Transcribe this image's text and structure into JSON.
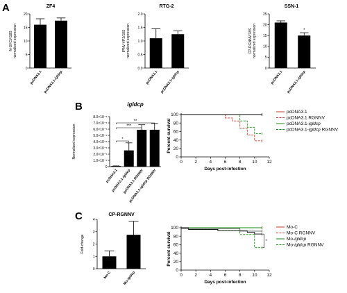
{
  "panels": {
    "A": "A",
    "B": "B",
    "C": "C"
  },
  "chart_data": [
    {
      "id": "zf4",
      "type": "bar",
      "title": "ZF4",
      "ylabel": "N-SVCV/18S normalized expression",
      "ylim": [
        0,
        20
      ],
      "yticks": [
        "0",
        "5",
        "10",
        "15",
        "20"
      ],
      "categories": [
        "pcDNA3.1",
        "pcDNA3.1-igldcp"
      ],
      "values": [
        16,
        17.5
      ],
      "errors": [
        2.2,
        1.0
      ],
      "significance": []
    },
    {
      "id": "rtg2",
      "type": "bar",
      "title": "RTG-2",
      "ylabel": "IPNV-VP2/18S normalized expression",
      "ylim": [
        0,
        2.0
      ],
      "yticks": [
        "0.0",
        "0.5",
        "1.0",
        "1.5",
        "2.0"
      ],
      "categories": [
        "pcDNA3.1",
        "pcDNA3.1-igldcp"
      ],
      "values": [
        1.1,
        1.25
      ],
      "errors": [
        0.35,
        0.12
      ],
      "significance": []
    },
    {
      "id": "ssn1",
      "type": "bar",
      "title": "SSN-1",
      "ylabel": "CP-RGNNV/18S normalized expression",
      "ylim": [
        0,
        25
      ],
      "yticks": [
        "0",
        "5",
        "10",
        "15",
        "20",
        "25"
      ],
      "categories": [
        "pcDNA3.1",
        "pcDNA3.1-igldcp"
      ],
      "values": [
        21,
        15
      ],
      "errors": [
        0.8,
        1.3
      ],
      "significance": [
        "*"
      ]
    },
    {
      "id": "igldcp",
      "type": "bar",
      "title": "igldcp",
      "ylabel": "Normalized expression",
      "yscale": "linear",
      "yticks": [
        "0",
        "1.0×10⁻⁵",
        "2.0×10⁻⁵",
        "3.0×10⁻⁵",
        "4.0×10⁻⁵",
        "5.0×10⁻⁵",
        "6.0×10⁻⁵",
        "7.0×10⁻⁵",
        "8.0×10⁻⁵"
      ],
      "ylim": [
        0,
        8e-05
      ],
      "categories": [
        "pcDNA3.1",
        "pcDNA3.1-igldcp",
        "pcDNA3.1 RGNNV",
        "pcDNA3.1-igldcp RGNNV"
      ],
      "values": [
        1e-06,
        2.6e-05,
        5.9e-05,
        5.9e-05
      ],
      "errors": [
        2e-07,
        1.2e-05,
        8e-06,
        1e-05
      ],
      "significance": [
        "*",
        "***",
        "**"
      ]
    },
    {
      "id": "survival_b",
      "type": "line",
      "xlabel": "Days post-infection",
      "ylabel": "Percent survival",
      "xlim": [
        0,
        12
      ],
      "ylim": [
        0,
        100
      ],
      "xticks": [
        "0",
        "2",
        "4",
        "6",
        "8",
        "10",
        "12"
      ],
      "yticks": [
        "0",
        "20",
        "40",
        "60",
        "80",
        "100"
      ],
      "series": [
        {
          "name": "pcDNA3.1",
          "color": "#c0392b",
          "dash": "none",
          "x": [
            0,
            11
          ],
          "y": [
            100,
            100
          ]
        },
        {
          "name": "pcDNA3.1 RGNNV",
          "color": "#c0392b",
          "dash": "3,1.5",
          "x": [
            0,
            6,
            6,
            7,
            7,
            8,
            8,
            9,
            9,
            10,
            10,
            11
          ],
          "y": [
            100,
            100,
            92,
            92,
            85,
            85,
            68,
            68,
            52,
            52,
            38,
            38
          ]
        },
        {
          "name": "pcDNA3.1-igldcp",
          "color": "#1a8a1a",
          "dash": "none",
          "x": [
            0,
            11
          ],
          "y": [
            100,
            100
          ]
        },
        {
          "name": "pcDNA3.1-igldcp RGNNV",
          "color": "#1a8a1a",
          "dash": "3,1.5",
          "x": [
            0,
            8,
            8,
            9,
            9,
            10,
            10,
            11
          ],
          "y": [
            100,
            100,
            85,
            85,
            70,
            70,
            55,
            55
          ]
        },
        {
          "name": "",
          "color": "#000000",
          "dash": "none",
          "x": [
            0,
            11
          ],
          "y": [
            100,
            100
          ]
        }
      ],
      "legend": [
        {
          "label": "pcDNA3.1",
          "color": "#c0392b",
          "dash": "none"
        },
        {
          "label": "pcDNA3.1 RGNNV",
          "color": "#c0392b",
          "dash": "3,1.5"
        },
        {
          "label": "pcDNA3.1-",
          "italic": "igldcp",
          "color": "#1a8a1a",
          "dash": "none"
        },
        {
          "label": "pcDNA3.1-",
          "italic": "igldcp",
          "suffix": " RGNNV",
          "color": "#1a8a1a",
          "dash": "3,1.5"
        }
      ],
      "legend_position": "right"
    },
    {
      "id": "cprgnnv",
      "type": "bar",
      "title": "CP-RGNNV",
      "ylabel": "Fold-change",
      "ylim": [
        0,
        4
      ],
      "yticks": [
        "0",
        "1",
        "2",
        "3",
        "4"
      ],
      "categories": [
        "Mo-C",
        "Mo-igldcp"
      ],
      "values": [
        1.0,
        2.75
      ],
      "errors": [
        0.45,
        1.1
      ],
      "significance": []
    },
    {
      "id": "survival_c",
      "type": "line",
      "xlabel": "Days post-infection",
      "ylabel": "Percent survival",
      "xlim": [
        0,
        12
      ],
      "ylim": [
        0,
        100
      ],
      "xticks": [
        "0",
        "2",
        "4",
        "6",
        "8",
        "10",
        "12"
      ],
      "yticks": [
        "0",
        "20",
        "40",
        "60",
        "80",
        "100"
      ],
      "series": [
        {
          "name": "Mo-C",
          "color": "#c0392b",
          "dash": "none",
          "x": [
            0,
            11
          ],
          "y": [
            100,
            100
          ]
        },
        {
          "name": "Mo-C RGNNV",
          "color": "#c0392b",
          "dash": "3,1.5",
          "x": [
            0,
            11
          ],
          "y": [
            100,
            100
          ]
        },
        {
          "name": "Mo-igldcp",
          "color": "#1a8a1a",
          "dash": "none",
          "x": [
            0,
            11
          ],
          "y": [
            100,
            100
          ]
        },
        {
          "name": "Mo-igldcp RGNNV",
          "color": "#1a8a1a",
          "dash": "3,1.5",
          "x": [
            0,
            1,
            1,
            5,
            5,
            8,
            8,
            10,
            10,
            11
          ],
          "y": [
            100,
            100,
            96,
            96,
            93,
            93,
            84,
            84,
            53,
            53
          ]
        },
        {
          "name": "",
          "color": "#000000",
          "dash": "none",
          "x": [
            0,
            1,
            1,
            5,
            5,
            9,
            9,
            10,
            10,
            11
          ],
          "y": [
            100,
            100,
            96,
            96,
            93,
            93,
            89,
            89,
            85,
            85
          ]
        },
        {
          "name": "",
          "color": "#555555",
          "dash": "none",
          "x": [
            0,
            8,
            8,
            11
          ],
          "y": [
            98,
            98,
            92,
            92
          ]
        }
      ],
      "legend": [
        {
          "label": "Mo-C",
          "color": "#c0392b",
          "dash": "none"
        },
        {
          "label": "Mo-C RGNNV",
          "color": "#c0392b",
          "dash": "3,1.5"
        },
        {
          "label": "Mo-",
          "italic": "igldcp",
          "color": "#1a8a1a",
          "dash": "none"
        },
        {
          "label": "Mo-",
          "italic": "igldcp",
          "suffix": " RGNNV",
          "color": "#1a8a1a",
          "dash": "3,1.5"
        }
      ],
      "legend_position": "right",
      "significance": [
        "*"
      ]
    }
  ]
}
